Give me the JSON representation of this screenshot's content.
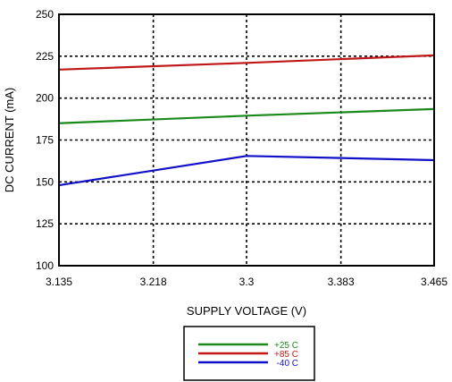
{
  "chart_data": {
    "type": "line",
    "xlabel": "SUPPLY VOLTAGE (V)",
    "ylabel": "DC CURRENT (mA)",
    "xlim": [
      3.135,
      3.465
    ],
    "ylim": [
      100,
      250
    ],
    "x_ticks": [
      "3.135",
      "3.218",
      "3.3",
      "3.383",
      "3.465"
    ],
    "y_ticks": [
      "100",
      "125",
      "150",
      "175",
      "200",
      "225",
      "250"
    ],
    "grid": "dotted",
    "legend_position": "bottom-center",
    "series": [
      {
        "name": "+25 C",
        "color": "#1a8a1a",
        "x": [
          3.135,
          3.3,
          3.465
        ],
        "y": [
          185,
          189.5,
          193.5
        ]
      },
      {
        "name": "+85 C",
        "color": "#c01818",
        "x": [
          3.135,
          3.3,
          3.465
        ],
        "y": [
          217,
          221,
          225.5
        ]
      },
      {
        "name": "-40 C",
        "color": "#1010c8",
        "x": [
          3.135,
          3.3,
          3.465
        ],
        "y": [
          148,
          165.5,
          163
        ]
      }
    ]
  }
}
